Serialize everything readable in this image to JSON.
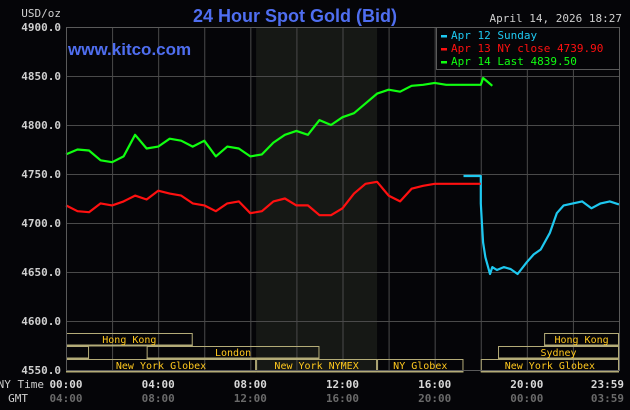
{
  "header": {
    "title": "24 Hour Spot Gold (Bid)",
    "timestamp": "April 14, 2026 18:27",
    "unit": "USD/oz",
    "watermark": "www.kitco.com"
  },
  "legend": [
    {
      "label": "Apr 12 Sunday",
      "color": "#1ec8f0"
    },
    {
      "label": "Apr 13 NY close 4739.90",
      "color": "#ff1010"
    },
    {
      "label": "Apr 14 Last 4839.50",
      "color": "#10ff10"
    }
  ],
  "axes": {
    "y_ticks": [
      "4900.0",
      "4850.0",
      "4800.0",
      "4750.0",
      "4700.0",
      "4650.0",
      "4600.0",
      "4550.0"
    ],
    "x_row_label_ny": "NY Time",
    "x_row_label_gmt": "GMT",
    "x_ticks_ny": [
      "00:00",
      "04:00",
      "08:00",
      "12:00",
      "16:00",
      "20:00",
      "23:59"
    ],
    "x_ticks_gmt": [
      "04:00",
      "08:00",
      "12:00",
      "16:00",
      "20:00",
      "00:00",
      "03:59"
    ]
  },
  "sessions": [
    {
      "label": "Hong Kong",
      "row": 0,
      "start": 0,
      "end": 5.5
    },
    {
      "label": "Hong Kong",
      "row": 0,
      "start": 20.75,
      "end": 24
    },
    {
      "label": "",
      "row": 1,
      "start": 0,
      "end": 1
    },
    {
      "label": "London",
      "row": 1,
      "start": 3.5,
      "end": 11.0
    },
    {
      "label": "Sydney",
      "row": 1,
      "start": 18.75,
      "end": 24
    },
    {
      "label": "New York Globex",
      "row": 2,
      "start": 0,
      "end": 8.25
    },
    {
      "label": "New York NYMEX",
      "row": 2,
      "start": 8.25,
      "end": 13.5
    },
    {
      "label": "NY Globex",
      "row": 2,
      "start": 13.5,
      "end": 17.25
    },
    {
      "label": "New York Globex",
      "row": 2,
      "start": 18.0,
      "end": 24
    }
  ],
  "chart_data": {
    "type": "line",
    "title": "24 Hour Spot Gold (Bid)",
    "xlabel": "NY Time",
    "ylabel": "USD/oz",
    "ylim": [
      4550,
      4900
    ],
    "xlim": [
      0,
      24
    ],
    "grid": true,
    "legend_position": "top-right",
    "shaded_region": [
      8.25,
      13.5
    ],
    "series": [
      {
        "name": "Apr 12 Sunday",
        "color": "#1ec8f0",
        "x": [
          17.25,
          18.0,
          18.0,
          18.05,
          18.1,
          18.2,
          18.4,
          18.5,
          18.7,
          19.0,
          19.3,
          19.6,
          20.0,
          20.3,
          20.6,
          21.0,
          21.3,
          21.6,
          22.0,
          22.4,
          22.8,
          23.2,
          23.6,
          24.0
        ],
        "values": [
          4748,
          4748,
          4720,
          4700,
          4680,
          4665,
          4648,
          4655,
          4652,
          4655,
          4653,
          4648,
          4660,
          4668,
          4673,
          4690,
          4710,
          4718,
          4720,
          4722,
          4715,
          4720,
          4722,
          4719
        ]
      },
      {
        "name": "Apr 13 NY close 4739.90",
        "color": "#ff1010",
        "x": [
          0,
          0.5,
          1.0,
          1.5,
          2.0,
          2.5,
          3.0,
          3.5,
          4.0,
          4.5,
          5.0,
          5.5,
          6.0,
          6.5,
          7.0,
          7.5,
          8.0,
          8.5,
          9.0,
          9.5,
          10.0,
          10.5,
          11.0,
          11.5,
          12.0,
          12.5,
          13.0,
          13.5,
          14.0,
          14.5,
          15.0,
          15.5,
          16.0,
          16.5,
          17.0,
          17.5,
          18.0
        ],
        "values": [
          4718,
          4712,
          4711,
          4720,
          4718,
          4722,
          4728,
          4724,
          4733,
          4730,
          4728,
          4720,
          4718,
          4712,
          4720,
          4722,
          4710,
          4712,
          4722,
          4725,
          4718,
          4718,
          4708,
          4708,
          4715,
          4730,
          4740,
          4742,
          4728,
          4722,
          4735,
          4738,
          4740,
          4740,
          4740,
          4740,
          4740
        ]
      },
      {
        "name": "Apr 14 Last 4839.50",
        "color": "#10ff10",
        "x": [
          0,
          0.5,
          1.0,
          1.5,
          2.0,
          2.5,
          3.0,
          3.5,
          4.0,
          4.5,
          5.0,
          5.5,
          6.0,
          6.5,
          7.0,
          7.5,
          8.0,
          8.5,
          9.0,
          9.5,
          10.0,
          10.5,
          11.0,
          11.5,
          12.0,
          12.5,
          13.0,
          13.5,
          14.0,
          14.5,
          15.0,
          15.5,
          16.0,
          16.5,
          17.0,
          17.5,
          18.0,
          18.1,
          18.3,
          18.5
        ],
        "values": [
          4770,
          4775,
          4774,
          4764,
          4762,
          4768,
          4790,
          4776,
          4778,
          4786,
          4784,
          4778,
          4784,
          4768,
          4778,
          4776,
          4768,
          4770,
          4782,
          4790,
          4794,
          4790,
          4805,
          4800,
          4808,
          4812,
          4822,
          4832,
          4836,
          4834,
          4840,
          4841,
          4843,
          4841,
          4841,
          4841,
          4841,
          4848,
          4844,
          4840
        ]
      }
    ]
  }
}
